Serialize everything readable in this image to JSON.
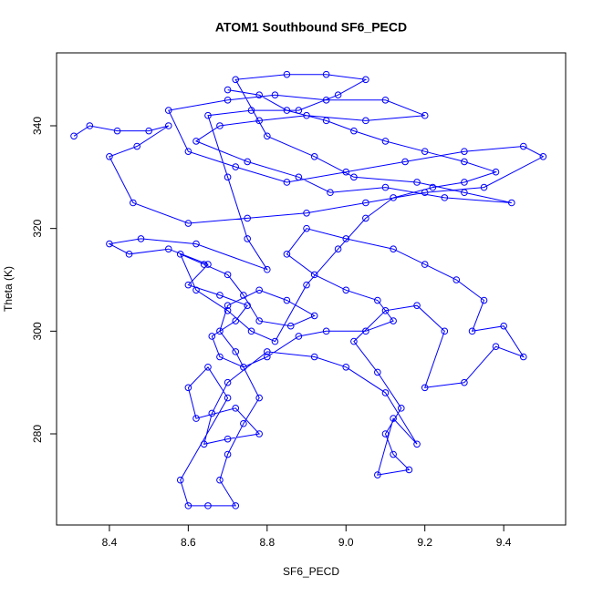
{
  "chart_data": {
    "type": "line",
    "marker": "circle",
    "title": "ATOM1 Southbound SF6_PECD",
    "x_label": "SF6_PECD",
    "y_label": "Theta (K)",
    "color": "#0000ff",
    "xlim": [
      8.266,
      9.557
    ],
    "ylim": [
      262.25,
      354.2
    ],
    "xticks": [
      8.4,
      8.6,
      8.8,
      {
        "value": 9,
        "label": "9.0"
      },
      9.2,
      9.4
    ],
    "yticks": [
      280,
      300,
      320,
      340
    ],
    "x": [
      8.31,
      8.35,
      8.42,
      8.5,
      8.55,
      8.47,
      8.4,
      8.46,
      8.6,
      8.75,
      8.9,
      9.05,
      9.2,
      9.35,
      9.5,
      9.45,
      9.3,
      9.15,
      9,
      8.85,
      8.72,
      8.6,
      8.55,
      8.7,
      8.82,
      8.95,
      9.1,
      9.2,
      9.05,
      8.9,
      8.78,
      8.68,
      8.62,
      8.75,
      8.88,
      8.96,
      9.1,
      9.25,
      9.42,
      9.3,
      9.18,
      9.02,
      8.92,
      8.8,
      8.72,
      8.85,
      8.95,
      9.05,
      8.98,
      8.88,
      8.76,
      8.65,
      8.7,
      8.75,
      8.8,
      8.62,
      8.48,
      8.4,
      8.45,
      8.55,
      8.65,
      8.6,
      8.68,
      8.75,
      8.72,
      8.66,
      8.68,
      8.74,
      8.8,
      8.88,
      8.95,
      9.05,
      9.12,
      9.08,
      9,
      8.92,
      8.85,
      8.9,
      9,
      9.12,
      9.2,
      9.28,
      9.35,
      9.32,
      9.4,
      9.45,
      9.38,
      9.3,
      9.2,
      9.25,
      9.18,
      9.1,
      9.02,
      9.08,
      9.14,
      9.1,
      9.12,
      9.16,
      9.08,
      9.12,
      9.18,
      9.1,
      9,
      8.92,
      8.8,
      8.7,
      8.66,
      8.64,
      8.7,
      8.78,
      8.72,
      8.62,
      8.6,
      8.65,
      8.7,
      8.58,
      8.6,
      8.65,
      8.72,
      8.68,
      8.7,
      8.74,
      8.78,
      8.72,
      8.68,
      8.7,
      8.78,
      8.85,
      8.92,
      8.86,
      8.78,
      8.74,
      8.7,
      8.64,
      8.58,
      8.62,
      8.7,
      8.76,
      8.82,
      8.9,
      8.98,
      9.05,
      9.12,
      9.22,
      9.3,
      9.38,
      9.3,
      9.2,
      9.1,
      9.02,
      8.95,
      8.85,
      8.78,
      8.7
    ],
    "y": [
      338,
      340,
      339,
      339,
      340,
      336,
      334,
      325,
      321,
      322,
      323,
      325,
      327,
      328,
      334,
      336,
      335,
      333,
      331,
      329,
      332,
      335,
      343,
      345,
      346,
      345,
      345,
      342,
      341,
      342,
      341,
      340,
      337,
      333,
      330,
      327,
      328,
      326,
      325,
      327,
      329,
      330,
      334,
      338,
      349,
      350,
      350,
      349,
      346,
      343,
      343,
      342,
      330,
      318,
      312,
      317,
      318,
      317,
      315,
      316,
      313,
      309,
      307,
      305,
      302,
      299,
      295,
      293,
      295,
      299,
      300,
      300,
      302,
      306,
      308,
      311,
      315,
      320,
      318,
      316,
      313,
      310,
      306,
      300,
      301,
      295,
      297,
      290,
      289,
      300,
      305,
      304,
      298,
      292,
      285,
      280,
      276,
      273,
      272,
      283,
      278,
      288,
      293,
      295,
      296,
      290,
      284,
      278,
      279,
      280,
      285,
      283,
      289,
      293,
      287,
      271,
      266,
      266,
      266,
      271,
      276,
      282,
      287,
      296,
      300,
      305,
      308,
      306,
      303,
      301,
      302,
      307,
      311,
      313,
      315,
      308,
      304,
      300,
      298,
      309,
      316,
      322,
      326,
      328,
      329,
      331,
      333,
      335,
      337,
      339,
      341,
      343,
      346,
      347
    ]
  }
}
